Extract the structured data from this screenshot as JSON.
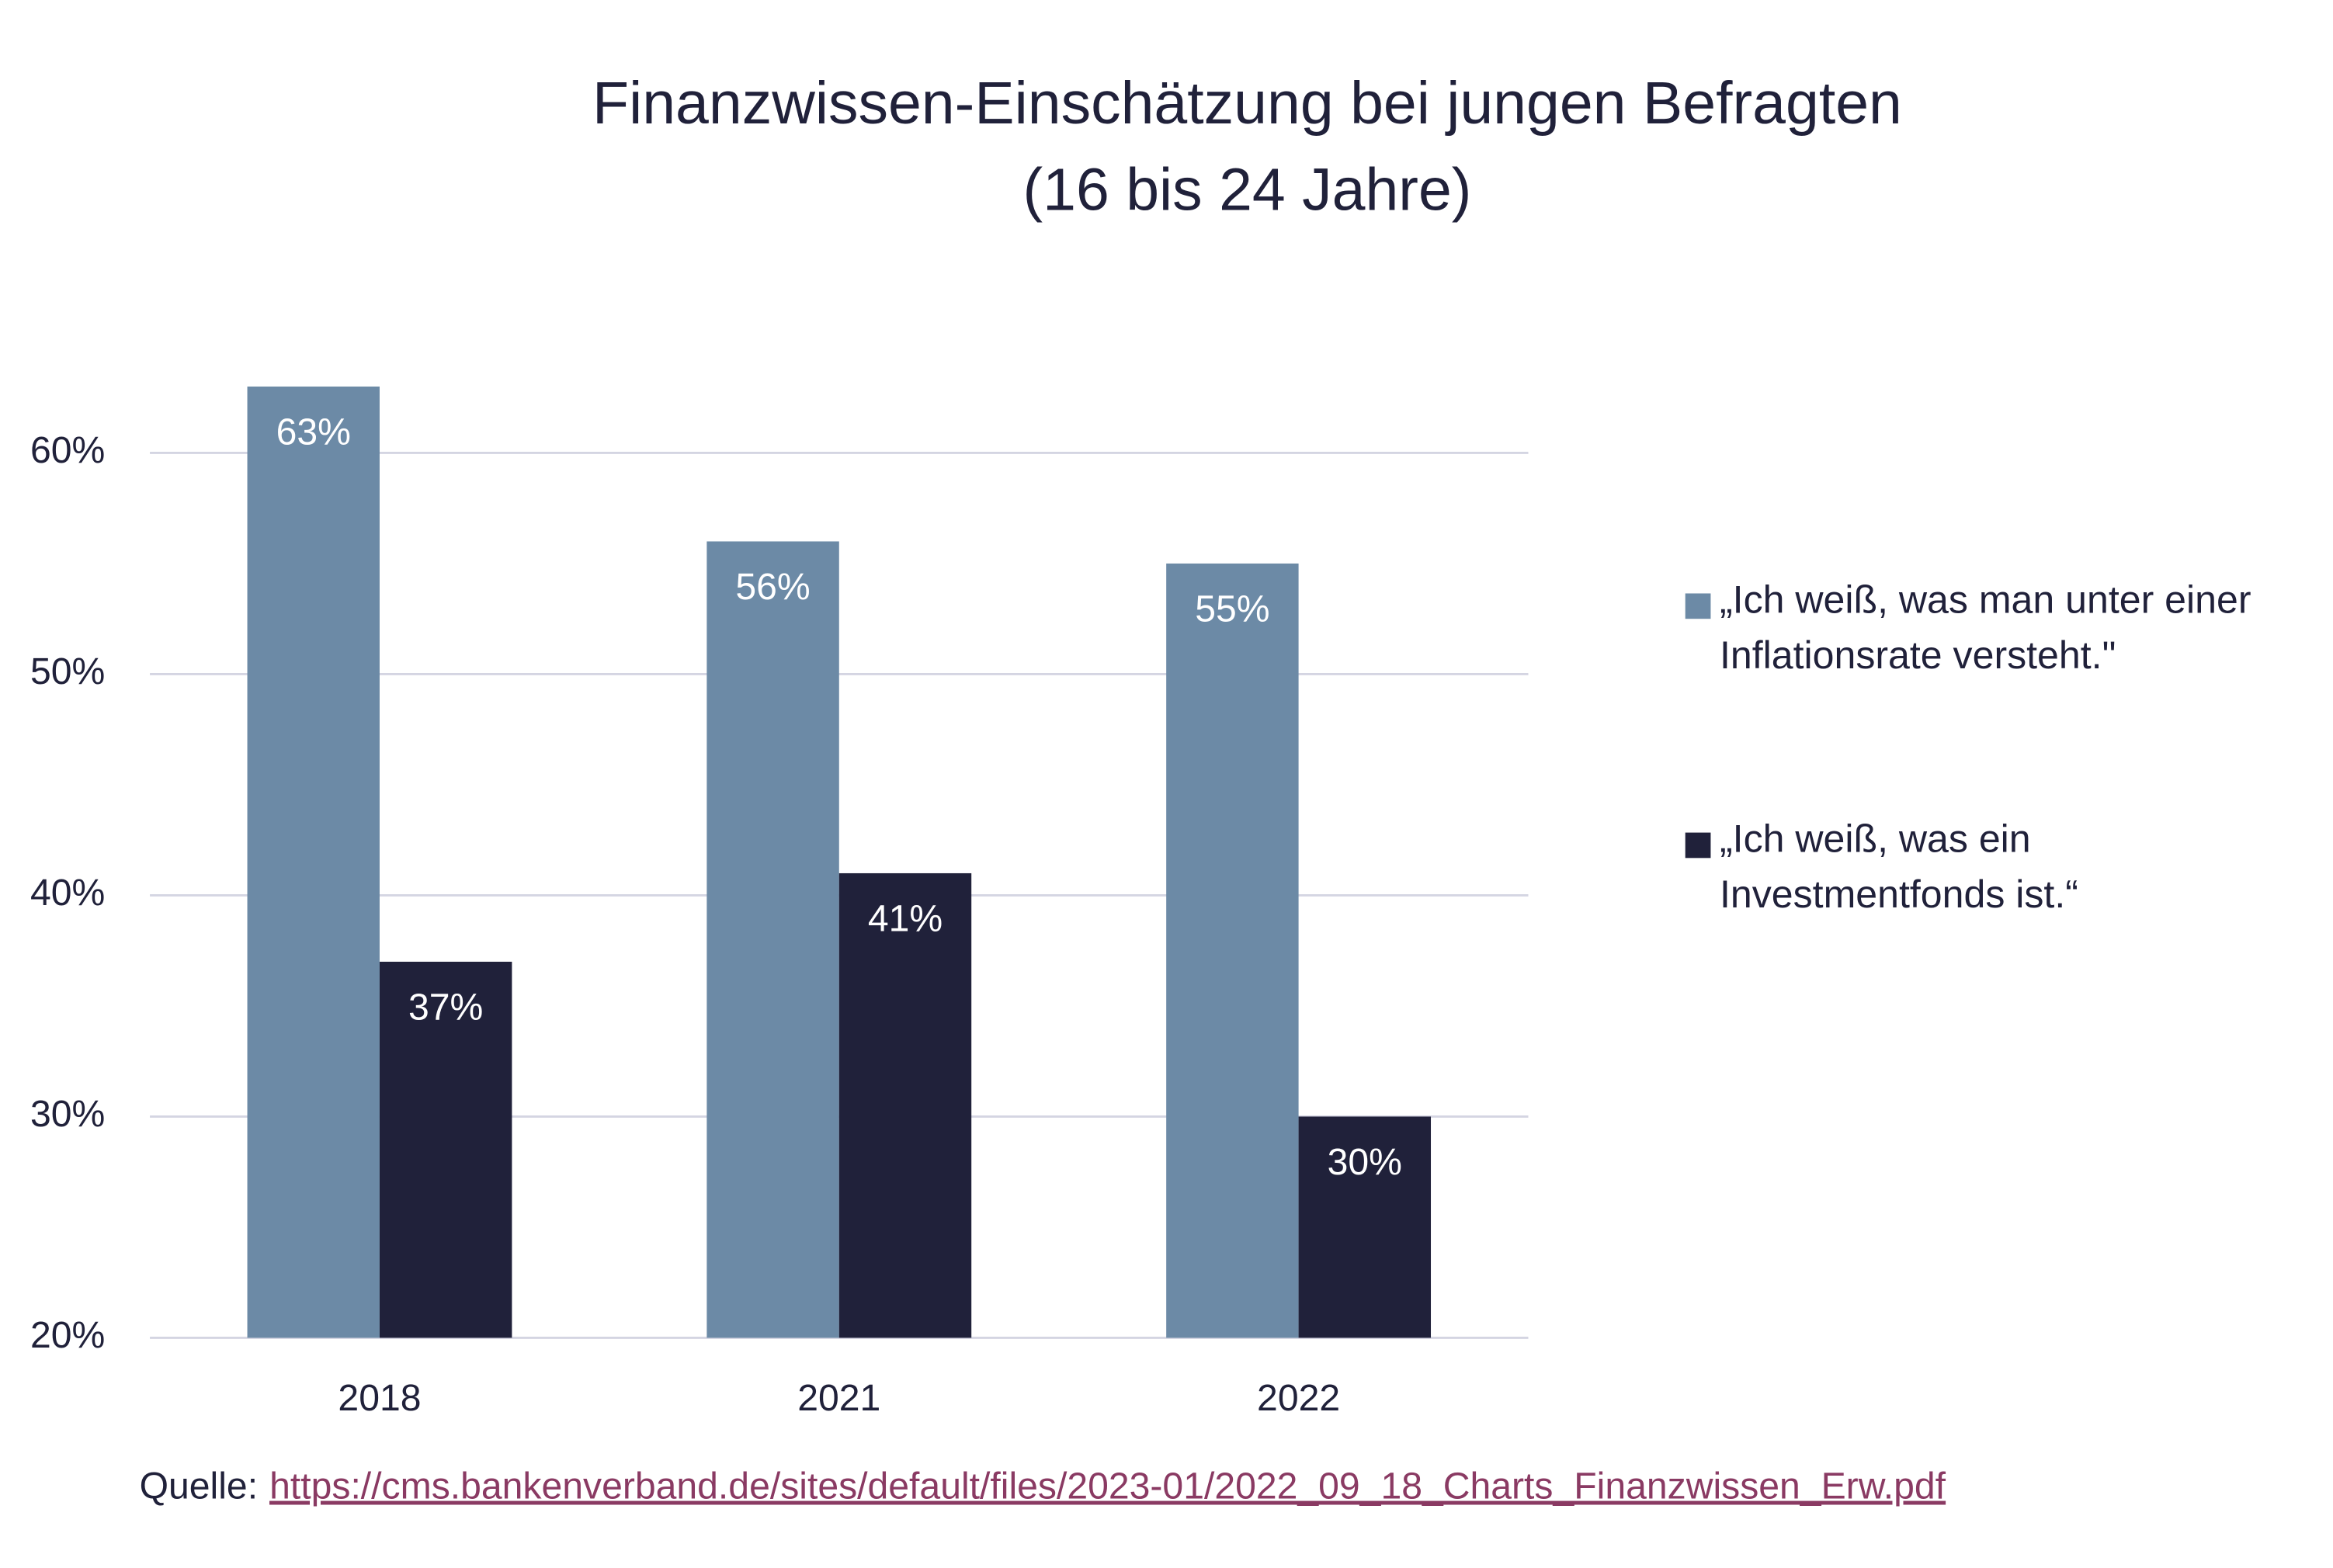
{
  "chart_data": {
    "type": "bar",
    "title": "Finanzwissen-Einschätzung bei jungen Befragten",
    "subtitle": "(16 bis 24 Jahre)",
    "categories": [
      "2018",
      "2021",
      "2022"
    ],
    "series": [
      {
        "name": "„Ich weiß, was man unter einer Inflationsrate versteht.\"",
        "color": "#6c8aa6",
        "values": [
          63,
          56,
          55
        ],
        "value_labels": [
          "63%",
          "56%",
          "55%"
        ]
      },
      {
        "name": "„Ich weiß, was ein Investmentfonds ist.“",
        "color": "#20213a",
        "values": [
          37,
          41,
          30
        ],
        "value_labels": [
          "37%",
          "41%",
          "30%"
        ]
      }
    ],
    "ylim": [
      20,
      65
    ],
    "yticks": [
      {
        "value": 20,
        "label": "20%"
      },
      {
        "value": 30,
        "label": "30%"
      },
      {
        "value": 40,
        "label": "40%"
      },
      {
        "value": 50,
        "label": "50%"
      },
      {
        "value": 60,
        "label": "60%"
      }
    ],
    "grid": true,
    "legend": "right",
    "source_label": "Quelle:",
    "source_url": "https://cms.bankenverband.de/sites/default/files/2023-01/2022_09_18_Charts_Finanzwissen_Erw.pdf"
  }
}
